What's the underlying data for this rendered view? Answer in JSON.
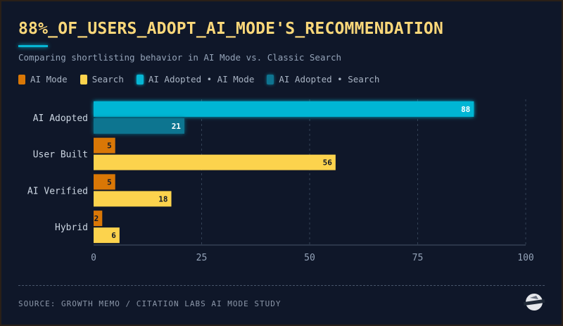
{
  "title": "88%_OF_USERS_ADOPT_AI_MODE'S_RECOMMENDATION",
  "subtitle": "Comparing shortlisting behavior in AI Mode vs. Classic Search",
  "legend": [
    {
      "label": "AI Mode",
      "color": "#d97706"
    },
    {
      "label": "Search",
      "color": "#fcd34d"
    },
    {
      "label": "AI Adopted • AI Mode",
      "color": "#06b6d4"
    },
    {
      "label": "AI Adopted • Search",
      "color": "#0e7490"
    }
  ],
  "footer": "SOURCE: GROWTH MEMO / CITATION LABS AI MODE STUDY",
  "logo_text": "GROWTH MEMO",
  "chart_data": {
    "type": "bar",
    "orientation": "horizontal",
    "categories": [
      "AI Adopted",
      "User Built",
      "AI Verified",
      "Hybrid"
    ],
    "series": [
      {
        "name": "AI Mode",
        "values": [
          88,
          5,
          5,
          2
        ],
        "colors": [
          "#06b6d4",
          "#d97706",
          "#d97706",
          "#d97706"
        ]
      },
      {
        "name": "Search",
        "values": [
          21,
          56,
          18,
          6
        ],
        "colors": [
          "#0e7490",
          "#fcd34d",
          "#fcd34d",
          "#fcd34d"
        ]
      }
    ],
    "xlim": [
      0,
      100
    ],
    "xticks": [
      0,
      25,
      50,
      75,
      100
    ],
    "grid": true,
    "legend_position": "top-left"
  }
}
